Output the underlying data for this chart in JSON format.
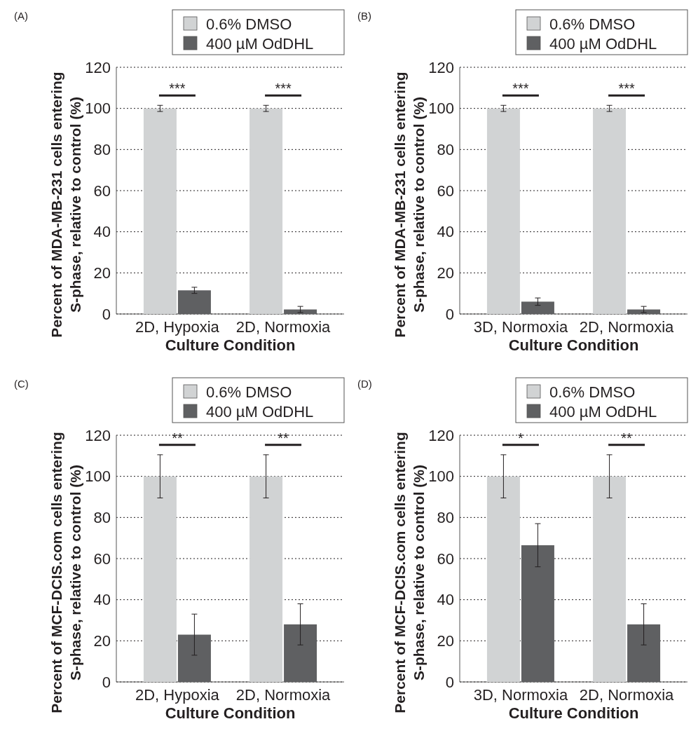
{
  "chart_data": [
    {
      "type": "bar",
      "title": "(A)",
      "xlabel": "Culture Condition",
      "ylabel": "Percent of MDA-MB-231 cells entering\nS-phase, relative to control (%)",
      "categories": [
        "2D, Hypoxia",
        "2D, Normoxia"
      ],
      "series": [
        {
          "name": "0.6% DMSO",
          "color": "#d1d3d4",
          "values": [
            100,
            100
          ],
          "errors": [
            1.5,
            1.5
          ]
        },
        {
          "name": "400 µM OdDHL",
          "color": "#5f6062",
          "values": [
            11.5,
            2.2
          ],
          "errors": [
            1.5,
            1.5
          ]
        }
      ],
      "ylim": [
        0,
        120
      ],
      "yticks": [
        0,
        20,
        40,
        60,
        80,
        100,
        120
      ],
      "grid": "y",
      "legend": "top right",
      "annotations": [
        "***",
        "***"
      ]
    },
    {
      "type": "bar",
      "title": "(B)",
      "xlabel": "Culture Condition",
      "ylabel": "Percent of MDA-MB-231 cells entering\nS-phase, relative to control (%)",
      "categories": [
        "3D, Normoxia",
        "2D, Normoxia"
      ],
      "series": [
        {
          "name": "0.6% DMSO",
          "color": "#d1d3d4",
          "values": [
            100,
            100
          ],
          "errors": [
            1.5,
            1.5
          ]
        },
        {
          "name": "400 µM OdDHL",
          "color": "#5f6062",
          "values": [
            6,
            2.2
          ],
          "errors": [
            1.8,
            1.5
          ]
        }
      ],
      "ylim": [
        0,
        120
      ],
      "yticks": [
        0,
        20,
        40,
        60,
        80,
        100,
        120
      ],
      "grid": "y",
      "legend": "top right",
      "annotations": [
        "***",
        "***"
      ]
    },
    {
      "type": "bar",
      "title": "(C)",
      "xlabel": "Culture Condition",
      "ylabel": "Percent of MCF-DCIS.com cells entering\nS-phase, relative to control (%)",
      "categories": [
        "2D, Hypoxia",
        "2D, Normoxia"
      ],
      "series": [
        {
          "name": "0.6% DMSO",
          "color": "#d1d3d4",
          "values": [
            100,
            100
          ],
          "errors": [
            10.5,
            10.5
          ]
        },
        {
          "name": "400 µM OdDHL",
          "color": "#5f6062",
          "values": [
            23,
            28
          ],
          "errors": [
            10,
            10
          ]
        }
      ],
      "ylim": [
        0,
        120
      ],
      "yticks": [
        0,
        20,
        40,
        60,
        80,
        100,
        120
      ],
      "grid": "y",
      "legend": "top right",
      "annotations": [
        "**",
        "**"
      ]
    },
    {
      "type": "bar",
      "title": "(D)",
      "xlabel": "Culture Condition",
      "ylabel": "Percent of MCF-DCIS.com cells entering\nS-phase, relative to control (%)",
      "categories": [
        "3D, Normoxia",
        "2D, Normoxia"
      ],
      "series": [
        {
          "name": "0.6% DMSO",
          "color": "#d1d3d4",
          "values": [
            100,
            100
          ],
          "errors": [
            10.5,
            10.5
          ]
        },
        {
          "name": "400 µM OdDHL",
          "color": "#5f6062",
          "values": [
            66.5,
            28
          ],
          "errors": [
            10.5,
            10
          ]
        }
      ],
      "ylim": [
        0,
        120
      ],
      "yticks": [
        0,
        20,
        40,
        60,
        80,
        100,
        120
      ],
      "grid": "y",
      "legend": "top right",
      "annotations": [
        "*",
        "**"
      ]
    }
  ]
}
